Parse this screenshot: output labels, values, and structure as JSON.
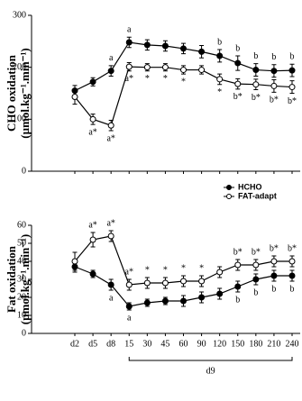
{
  "chart_data": [
    {
      "type": "line",
      "ylabel": "CHO oxidation",
      "ylabel_units": "(µmol.kg⁻¹.min⁻¹)",
      "ylim": [
        0,
        300
      ],
      "yticks": [
        0,
        100,
        200,
        300
      ],
      "series": [
        {
          "name": "HCHO",
          "color": "#000000",
          "marker_fill": "#000000",
          "annotation_side": "above",
          "values": [
            155,
            172,
            193,
            248,
            243,
            241,
            236,
            230,
            222,
            208,
            195,
            193,
            194
          ],
          "errors": [
            10,
            8,
            10,
            10,
            10,
            10,
            10,
            12,
            12,
            14,
            12,
            12,
            12
          ],
          "annotations": [
            null,
            null,
            "a",
            "a",
            null,
            null,
            null,
            null,
            "b",
            "b",
            "b",
            "b",
            "b"
          ]
        },
        {
          "name": "FAT-adapt",
          "color": "#000000",
          "marker_fill": "#ffffff",
          "annotation_side": "below",
          "values": [
            143,
            100,
            88,
            201,
            200,
            200,
            195,
            195,
            177,
            168,
            167,
            164,
            162
          ],
          "errors": [
            14,
            10,
            10,
            8,
            7,
            7,
            8,
            8,
            10,
            10,
            10,
            12,
            12
          ],
          "annotations": [
            null,
            "a*",
            "a*",
            "a*",
            "*",
            "*",
            "*",
            null,
            "*",
            "b*",
            "b*",
            "b*",
            "b*"
          ]
        }
      ]
    },
    {
      "type": "line",
      "ylabel": "Fat oxidation",
      "ylabel_units": "(µmol.kg⁻¹.min⁻¹)",
      "categories": [
        "d2",
        "d5",
        "d8",
        "15",
        "30",
        "45",
        "60",
        "90",
        "120",
        "150",
        "180",
        "210",
        "240"
      ],
      "bracket_label": "d9",
      "ylim": [
        0,
        60
      ],
      "yticks": [
        0,
        10,
        20,
        30,
        40,
        50,
        60
      ],
      "legend": "top-right",
      "series": [
        {
          "name": "HCHO",
          "color": "#000000",
          "marker_fill": "#000000",
          "annotation_side": "below",
          "values": [
            37,
            33,
            27,
            15,
            17,
            18,
            18,
            20,
            22,
            26,
            30,
            32,
            32
          ],
          "errors": [
            3,
            2,
            3,
            2,
            2,
            2,
            3,
            3,
            3,
            3,
            3,
            3,
            3
          ],
          "annotations": [
            null,
            null,
            "a",
            "a",
            null,
            null,
            null,
            null,
            null,
            "b",
            "b",
            "b",
            "b"
          ]
        },
        {
          "name": "FAT-adapt",
          "color": "#000000",
          "marker_fill": "#ffffff",
          "annotation_side": "above",
          "values": [
            40,
            52,
            54,
            27,
            28,
            28,
            29,
            29,
            34,
            38,
            38,
            40,
            40
          ],
          "errors": [
            5,
            4,
            3,
            3,
            3,
            3,
            3,
            3,
            3,
            3,
            3,
            3,
            3
          ],
          "annotations": [
            null,
            "a*",
            "a*",
            "a*",
            "*",
            "*",
            "*",
            "*",
            null,
            "b*",
            "b*",
            "b*",
            "b*"
          ]
        }
      ]
    }
  ]
}
